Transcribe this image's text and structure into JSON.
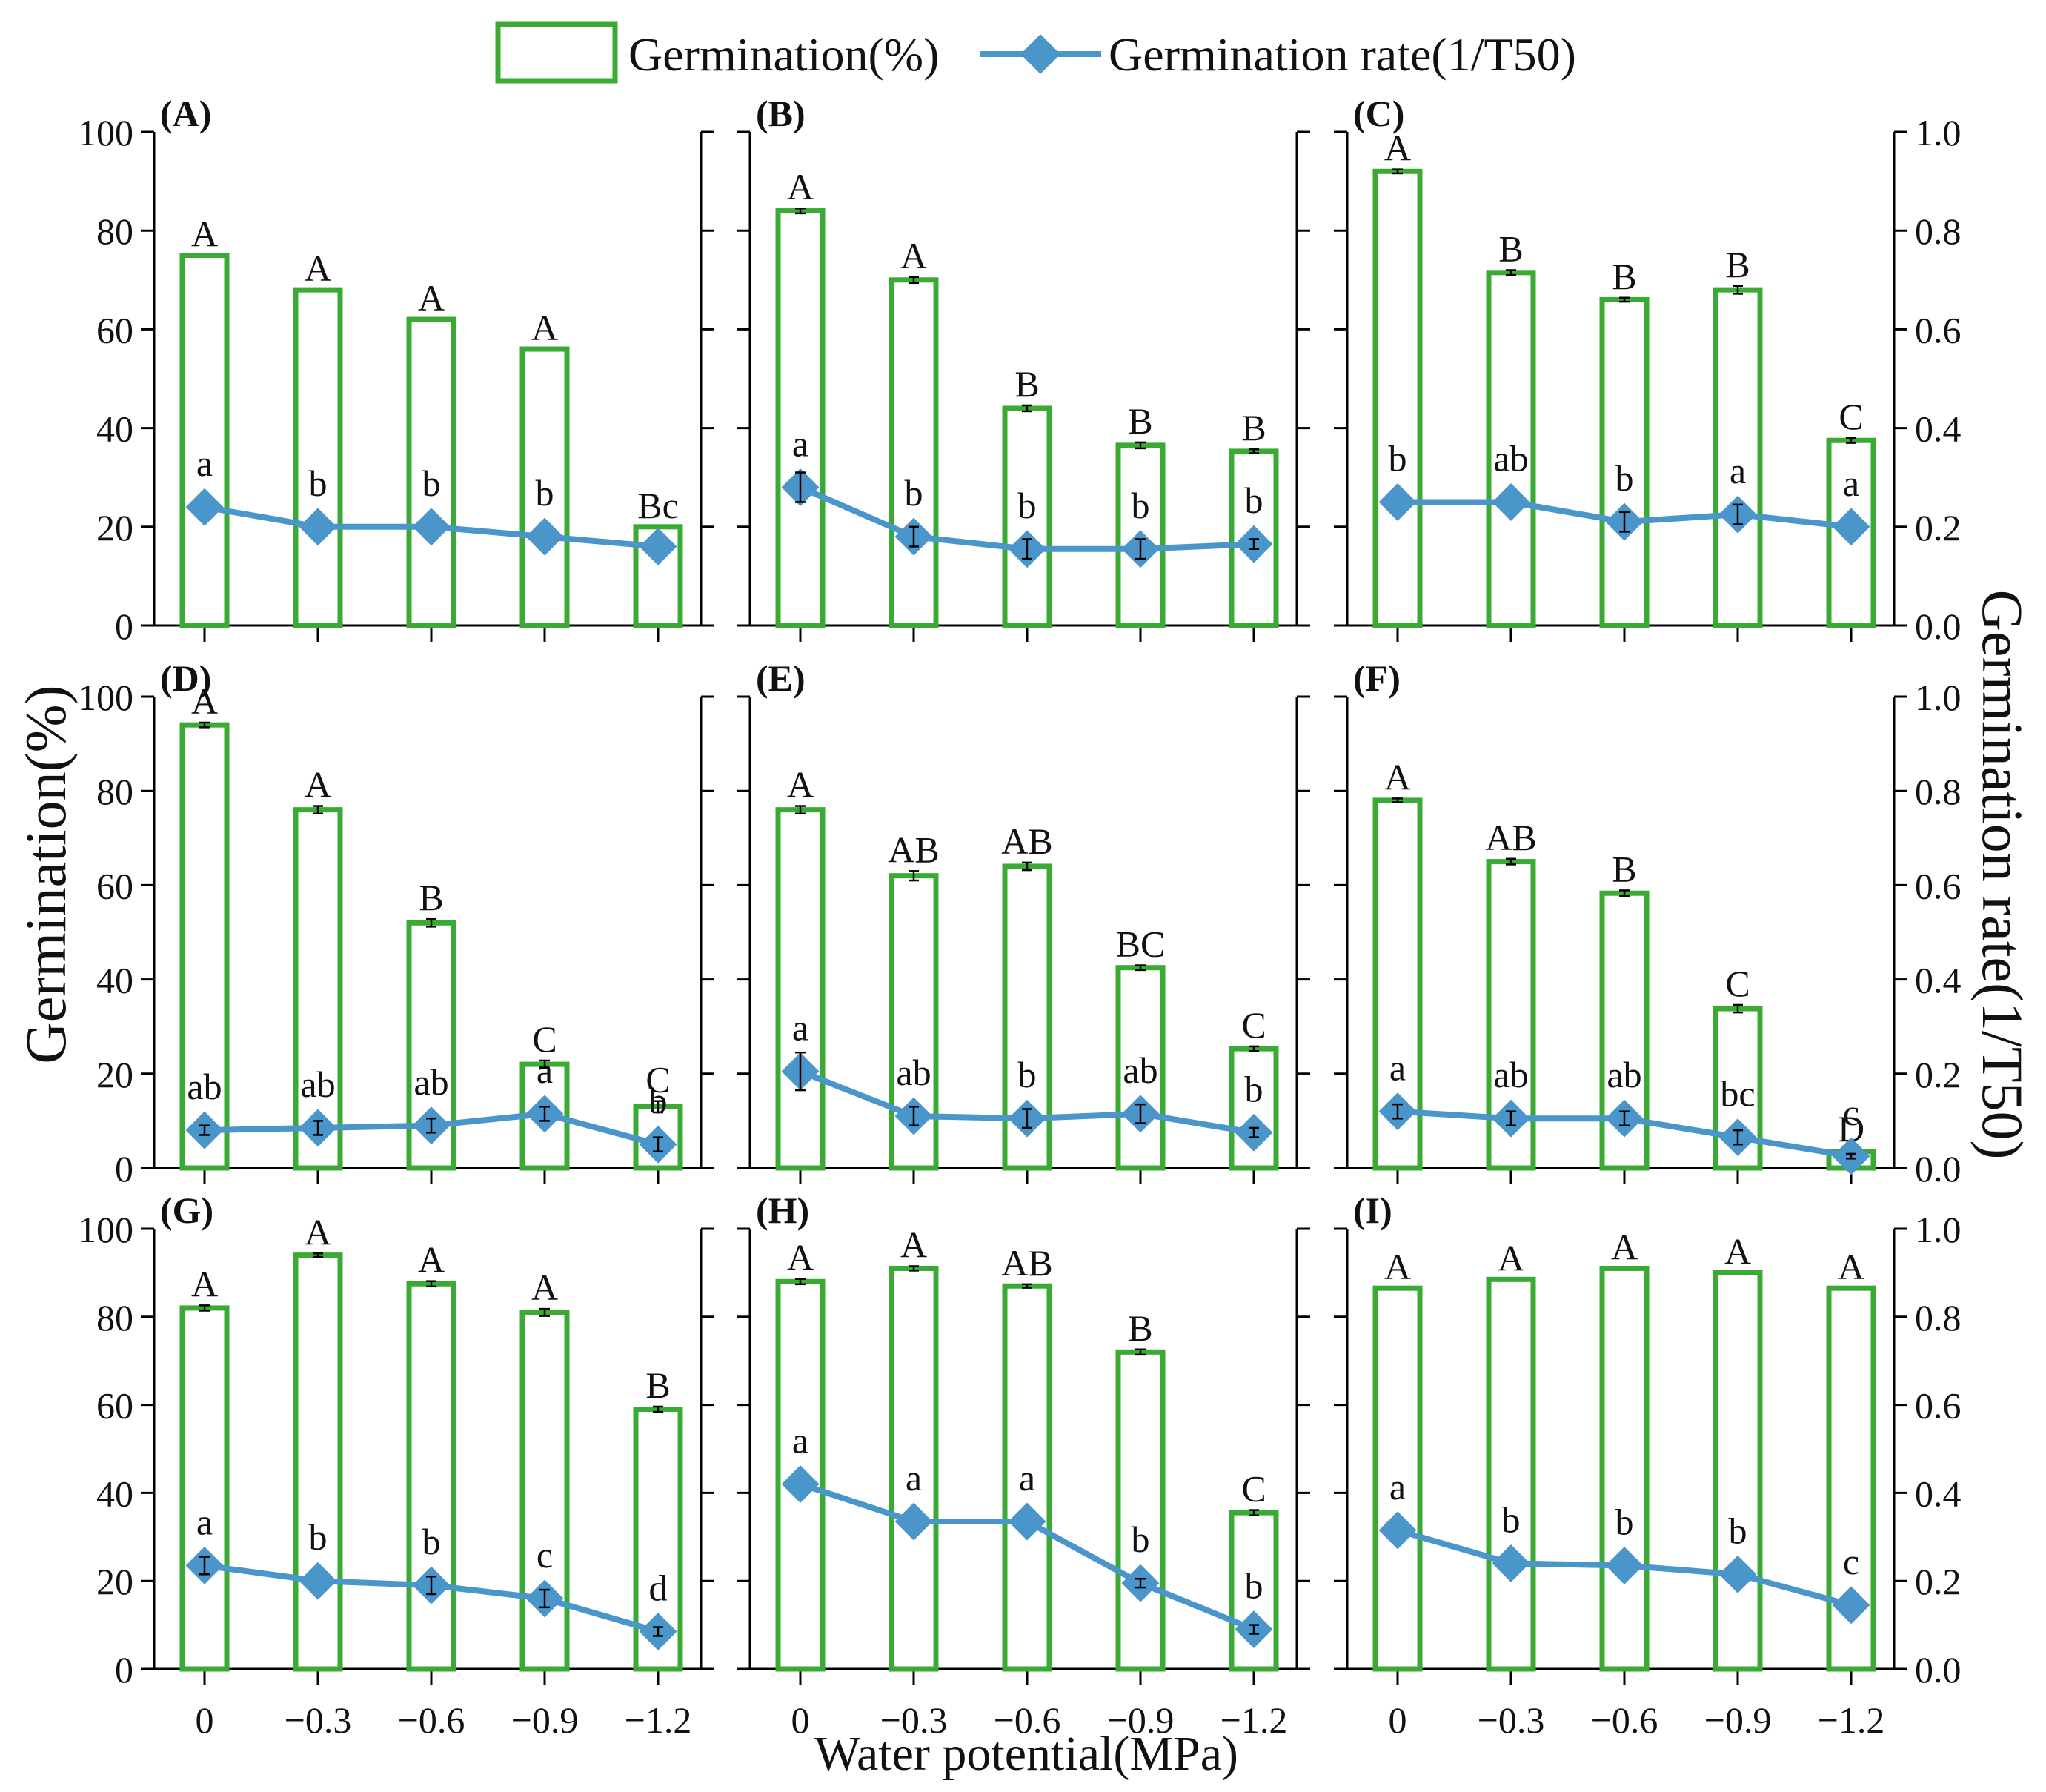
{
  "chart_data": {
    "type": "bar+line",
    "legend": {
      "bar_label": "Germination(%)",
      "line_label": "Germination rate(1/T50)",
      "placement": "top-center"
    },
    "xlabel": "Water potential(MPa)",
    "ylabel_left": "Germination(%)",
    "ylabel_right": "Germination rate(1/T50)",
    "categories": [
      "0",
      "−0.3",
      "−0.6",
      "−0.9",
      "−1.2"
    ],
    "ylim_left": [
      0,
      100
    ],
    "ylim_right": [
      0,
      1.0
    ],
    "left_ticks": [
      "0",
      "20",
      "40",
      "60",
      "80",
      "100"
    ],
    "right_ticks": [
      "0.0",
      "0.2",
      "0.4",
      "0.6",
      "0.8",
      "1.0"
    ],
    "colors": {
      "bar": "#3aaa35",
      "line": "#4a95c9"
    },
    "panels": [
      {
        "label": "(A)",
        "germination": [
          75,
          68,
          62,
          56,
          20
        ],
        "germination_err": [
          0,
          0,
          0,
          0,
          0
        ],
        "germination_letters": [
          "A",
          "A",
          "A",
          "A",
          "Bc"
        ],
        "rate": [
          0.24,
          0.2,
          0.2,
          0.18,
          0.16
        ],
        "rate_err": [
          0,
          0,
          0,
          0,
          0
        ],
        "rate_letters": [
          "a",
          "b",
          "b",
          "b",
          ""
        ]
      },
      {
        "label": "(B)",
        "germination": [
          84,
          70,
          44,
          36.5,
          35.3
        ],
        "germination_err": [
          0.5,
          0.6,
          0.6,
          0.6,
          0.4
        ],
        "germination_letters": [
          "A",
          "A",
          "B",
          "B",
          "B"
        ],
        "rate": [
          0.28,
          0.18,
          0.155,
          0.155,
          0.165
        ],
        "rate_err": [
          0.03,
          0.02,
          0.02,
          0.02,
          0.01
        ],
        "rate_letters": [
          "a",
          "b",
          "b",
          "b",
          "b"
        ]
      },
      {
        "label": "(C)",
        "germination": [
          92,
          71.5,
          66,
          68,
          37.5
        ],
        "germination_err": [
          0.4,
          0.5,
          0.4,
          0.8,
          0.5
        ],
        "germination_letters": [
          "A",
          "B",
          "B",
          "B",
          "C"
        ],
        "rate": [
          0.25,
          0.25,
          0.21,
          0.225,
          0.2
        ],
        "rate_err": [
          0,
          0,
          0.02,
          0.02,
          0
        ],
        "rate_letters": [
          "b",
          "ab",
          "b",
          "a",
          "a"
        ]
      },
      {
        "label": "(D)",
        "germination": [
          94,
          76,
          52,
          22,
          13
        ],
        "germination_err": [
          0.5,
          0.8,
          0.8,
          0.8,
          1.2
        ],
        "germination_letters": [
          "A",
          "A",
          "B",
          "C",
          "C"
        ],
        "rate": [
          0.08,
          0.085,
          0.09,
          0.115,
          0.05
        ],
        "rate_err": [
          0.01,
          0.015,
          0.015,
          0.015,
          0.015
        ],
        "rate_letters": [
          "ab",
          "ab",
          "ab",
          "a",
          "b"
        ]
      },
      {
        "label": "(E)",
        "germination": [
          76,
          62,
          64,
          42.5,
          25.3
        ],
        "germination_err": [
          0.8,
          1.0,
          0.8,
          0.5,
          0.5
        ],
        "germination_letters": [
          "A",
          "AB",
          "AB",
          "BC",
          "C"
        ],
        "rate": [
          0.205,
          0.11,
          0.105,
          0.115,
          0.075
        ],
        "rate_err": [
          0.04,
          0.02,
          0.02,
          0.02,
          0.01
        ],
        "rate_letters": [
          "a",
          "ab",
          "b",
          "ab",
          "b"
        ]
      },
      {
        "label": "(F)",
        "germination": [
          78,
          65,
          58.3,
          33.8,
          3.5
        ],
        "germination_err": [
          0.4,
          0.6,
          0.6,
          0.8,
          0.3
        ],
        "germination_letters": [
          "A",
          "AB",
          "B",
          "C",
          "D"
        ],
        "rate": [
          0.12,
          0.105,
          0.105,
          0.065,
          0.025
        ],
        "rate_err": [
          0.015,
          0.015,
          0.015,
          0.015,
          0.005
        ],
        "rate_letters": [
          "a",
          "ab",
          "ab",
          "bc",
          "c"
        ]
      },
      {
        "label": "(G)",
        "germination": [
          82,
          94,
          87.5,
          81,
          59
        ],
        "germination_err": [
          0.6,
          0.4,
          0.6,
          0.8,
          0.6
        ],
        "germination_letters": [
          "A",
          "A",
          "A",
          "A",
          "B"
        ],
        "rate": [
          0.235,
          0.2,
          0.19,
          0.16,
          0.085
        ],
        "rate_err": [
          0.02,
          0,
          0.02,
          0.02,
          0.01
        ],
        "rate_letters": [
          "a",
          "b",
          "b",
          "c",
          "d"
        ]
      },
      {
        "label": "(H)",
        "germination": [
          88,
          91,
          87,
          72,
          35.5
        ],
        "germination_err": [
          0.6,
          0.5,
          0.4,
          0.6,
          0.6
        ],
        "germination_letters": [
          "A",
          "A",
          "AB",
          "B",
          "C"
        ],
        "rate": [
          0.42,
          0.335,
          0.335,
          0.195,
          0.09
        ],
        "rate_err": [
          0,
          0,
          0,
          0.01,
          0.01
        ],
        "rate_letters": [
          "a",
          "a",
          "a",
          "b",
          "b"
        ]
      },
      {
        "label": "(I)",
        "germination": [
          86.5,
          88.5,
          91,
          90,
          86.5
        ],
        "germination_err": [
          0,
          0,
          0,
          0,
          0
        ],
        "germination_letters": [
          "A",
          "A",
          "A",
          "A",
          "A"
        ],
        "rate": [
          0.315,
          0.24,
          0.235,
          0.215,
          0.145
        ],
        "rate_err": [
          0,
          0,
          0,
          0,
          0
        ],
        "rate_letters": [
          "a",
          "b",
          "b",
          "b",
          "c"
        ]
      }
    ]
  }
}
